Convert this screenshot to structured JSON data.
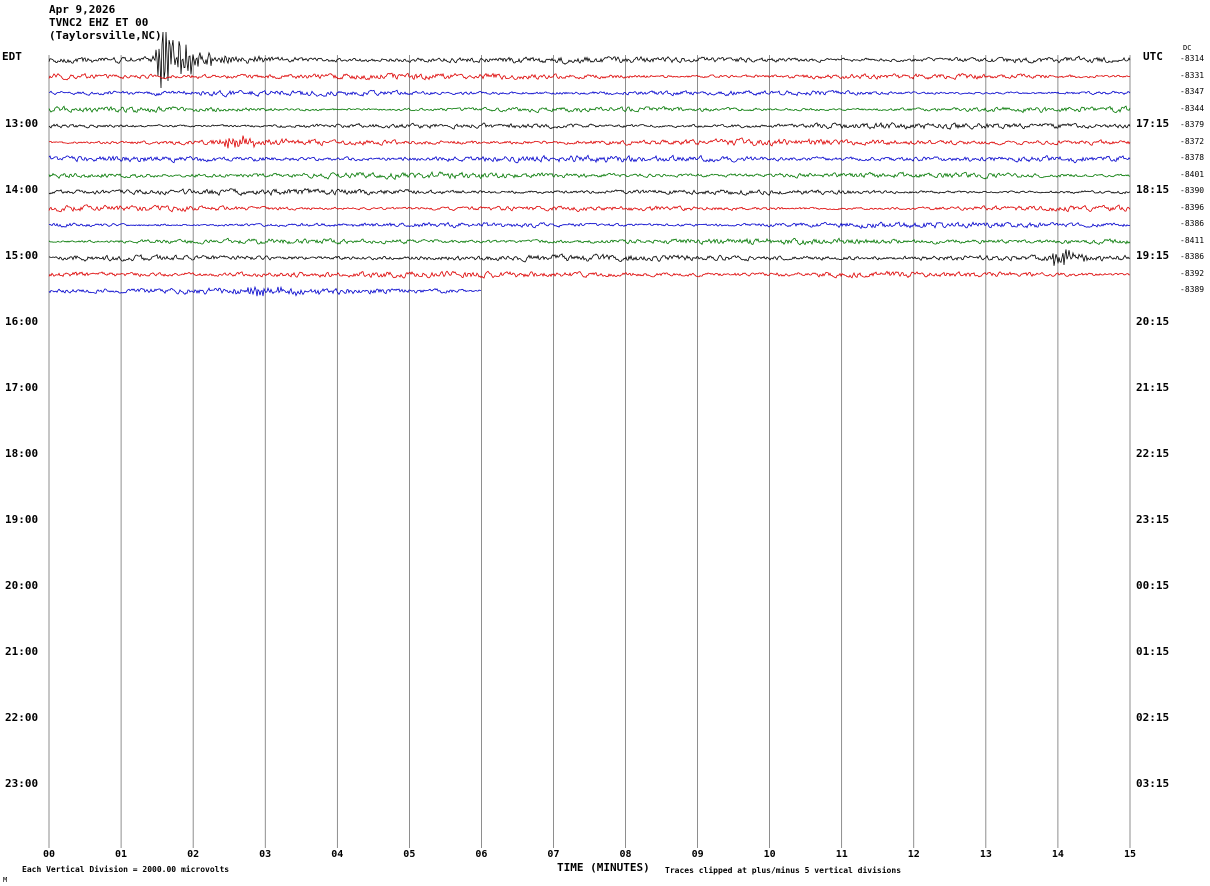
{
  "header": {
    "date": "Apr 9,2026",
    "station": "TVNC2 EHZ ET 00",
    "location": "(Taylorsville,NC)"
  },
  "axes": {
    "left_tz": "EDT",
    "right_tz": "UTC",
    "dc_label": "DC"
  },
  "left_axis": {
    "labels": [
      "13:00",
      "14:00",
      "15:00",
      "16:00",
      "17:00",
      "18:00",
      "19:00",
      "20:00",
      "21:00",
      "22:00",
      "23:00"
    ]
  },
  "right_axis": {
    "labels": [
      "17:15",
      "18:15",
      "19:15",
      "20:15",
      "21:15",
      "22:15",
      "23:15",
      "00:15",
      "01:15",
      "02:15",
      "03:15"
    ]
  },
  "dc_values": [
    "-8314",
    "-8331",
    "-8347",
    "-8344",
    "-8379",
    "-8372",
    "-8378",
    "-8401",
    "-8390",
    "-8396",
    "-8386",
    "-8411",
    "-8386",
    "-8392",
    "-8389"
  ],
  "x_axis": {
    "ticks": [
      "00",
      "01",
      "02",
      "03",
      "04",
      "05",
      "06",
      "07",
      "08",
      "09",
      "10",
      "11",
      "12",
      "13",
      "14",
      "15"
    ],
    "label": "TIME (MINUTES)"
  },
  "footer": {
    "left": "Each Vertical Division = 2000.00 microvolts",
    "right": "Traces clipped at plus/minus 5 vertical divisions",
    "corner_mark": "M"
  },
  "colors": {
    "black": "#000000",
    "red": "#dd0000",
    "blue": "#0000cc",
    "green": "#007700",
    "grid": "#444444"
  },
  "chart_data": {
    "type": "line",
    "subtype": "helicorder-seismogram",
    "title": "TVNC2 EHZ ET 00 (Taylorsville,NC) Apr 9,2026",
    "xlabel": "TIME (MINUTES)",
    "x_range": [
      0,
      15
    ],
    "minutes_per_line": 15,
    "lines_per_hour": 4,
    "grid": "vertical lines at each minute",
    "noise_description": "continuous background microseismic noise of roughly plus/minus one vertical division on all recorded lines",
    "traces": [
      {
        "color": "black",
        "dc": "-8314",
        "end_minute": 15,
        "events": [
          {
            "minute": 1.57,
            "amplitude": 30,
            "rise": 0.05,
            "decay": 0.45,
            "note": "large clipped spike"
          }
        ]
      },
      {
        "color": "red",
        "dc": "-8331",
        "end_minute": 15,
        "events": []
      },
      {
        "color": "blue",
        "dc": "-8347",
        "end_minute": 15,
        "events": []
      },
      {
        "color": "green",
        "dc": "-8344",
        "end_minute": 15,
        "events": []
      },
      {
        "color": "black",
        "dc": "-8379",
        "end_minute": 15,
        "events": []
      },
      {
        "color": "red",
        "dc": "-8372",
        "end_minute": 15,
        "events": [
          {
            "minute": 2.62,
            "amplitude": 7,
            "rise": 0.18,
            "decay": 0.3,
            "note": "small burst"
          }
        ]
      },
      {
        "color": "blue",
        "dc": "-8378",
        "end_minute": 15,
        "events": []
      },
      {
        "color": "green",
        "dc": "-8401",
        "end_minute": 15,
        "events": []
      },
      {
        "color": "black",
        "dc": "-8390",
        "end_minute": 15,
        "events": []
      },
      {
        "color": "red",
        "dc": "-8396",
        "end_minute": 15,
        "events": []
      },
      {
        "color": "blue",
        "dc": "-8386",
        "end_minute": 15,
        "events": []
      },
      {
        "color": "green",
        "dc": "-8411",
        "end_minute": 15,
        "events": []
      },
      {
        "color": "black",
        "dc": "-8386",
        "end_minute": 15,
        "events": [
          {
            "minute": 14.0,
            "amplitude": 12,
            "rise": 0.05,
            "decay": 0.18,
            "note": "small spike near right edge"
          }
        ]
      },
      {
        "color": "red",
        "dc": "-8392",
        "end_minute": 15,
        "events": []
      },
      {
        "color": "blue",
        "dc": "-8389",
        "end_minute": 6.0,
        "events": [
          {
            "minute": 2.95,
            "amplitude": 4,
            "rise": 0.25,
            "decay": 0.5,
            "note": "slight burst"
          }
        ],
        "note": "partial line - recording stops at minute 6"
      }
    ]
  }
}
